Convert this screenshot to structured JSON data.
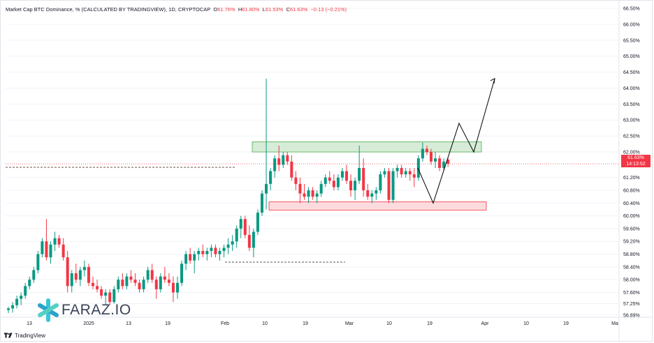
{
  "legend": {
    "title": "Market Cap BTC Dominance, % (CALCULATED BY TRADINGVIEW), 1D, CRYPTOCAP",
    "o_label": "O",
    "o_value": "61.76%",
    "h_label": "H",
    "h_value": "61.80%",
    "l_label": "L",
    "l_value": "61.53%",
    "c_label": "C",
    "c_value": "61.63%",
    "change": "−0.13 (−0.21%)"
  },
  "price_badge": {
    "price": "61.63%",
    "countdown": "14:13:52"
  },
  "watermark": {
    "text": "FARAZ.IO",
    "icon": "asterisk-logo-icon"
  },
  "footer": {
    "brand": "TradingView",
    "icon": "tradingview-logo-icon"
  },
  "colors": {
    "up": "#089981",
    "down": "#f23645",
    "resistance_zone": "#4caf50",
    "support_zone": "#f23645",
    "projection": "#000000",
    "grid": "#f0f3fa"
  },
  "chart_data": {
    "type": "candlestick",
    "y_axis": {
      "position": "right",
      "tick_labels": [
        "66.50%",
        "66.00%",
        "65.50%",
        "65.00%",
        "64.50%",
        "64.00%",
        "63.50%",
        "63.00%",
        "62.50%",
        "62.00%",
        "61.63%",
        "61.20%",
        "60.80%",
        "60.40%",
        "60.00%",
        "59.60%",
        "59.20%",
        "58.80%",
        "58.40%",
        "58.00%",
        "57.60%",
        "57.25%",
        "56.89%"
      ]
    },
    "x_axis": {
      "tick_labels": [
        "13",
        "2025",
        "13",
        "19",
        "Feb",
        "10",
        "19",
        "Mar",
        "10",
        "19",
        "Apr",
        "10",
        "19",
        "Ma"
      ]
    },
    "candles_ohlc": [
      [
        57.05,
        57.15,
        56.95,
        57.1
      ],
      [
        57.1,
        57.3,
        56.97,
        57.2
      ],
      [
        57.2,
        57.5,
        57.1,
        57.4
      ],
      [
        57.4,
        57.6,
        57.2,
        57.5
      ],
      [
        57.5,
        57.9,
        57.4,
        57.8
      ],
      [
        57.8,
        58.1,
        57.7,
        58.0
      ],
      [
        58.0,
        58.4,
        57.9,
        58.3
      ],
      [
        58.3,
        58.9,
        58.2,
        58.8
      ],
      [
        58.8,
        59.3,
        58.7,
        59.2
      ],
      [
        59.2,
        59.9,
        58.6,
        58.7
      ],
      [
        58.7,
        59.2,
        58.5,
        59.1
      ],
      [
        59.1,
        59.5,
        58.9,
        59.3
      ],
      [
        59.3,
        59.4,
        59.0,
        59.1
      ],
      [
        59.1,
        59.3,
        58.6,
        58.7
      ],
      [
        58.7,
        58.9,
        57.6,
        57.8
      ],
      [
        57.8,
        58.3,
        57.6,
        58.2
      ],
      [
        58.2,
        58.5,
        57.9,
        58.0
      ],
      [
        58.0,
        58.4,
        57.8,
        58.3
      ],
      [
        58.3,
        58.6,
        58.1,
        58.4
      ],
      [
        58.4,
        58.5,
        57.8,
        57.9
      ],
      [
        57.9,
        58.1,
        57.7,
        57.8
      ],
      [
        57.8,
        58.0,
        57.6,
        57.7
      ],
      [
        57.7,
        57.8,
        57.4,
        57.5
      ],
      [
        57.5,
        57.7,
        57.2,
        57.6
      ],
      [
        57.6,
        57.7,
        57.2,
        57.3
      ],
      [
        57.3,
        57.8,
        57.25,
        57.7
      ],
      [
        57.7,
        58.1,
        57.6,
        58.0
      ],
      [
        58.0,
        58.2,
        57.7,
        57.8
      ],
      [
        57.8,
        58.2,
        57.7,
        58.1
      ],
      [
        58.1,
        58.3,
        57.9,
        58.0
      ],
      [
        58.0,
        58.2,
        57.8,
        57.9
      ],
      [
        57.9,
        58.0,
        57.6,
        57.7
      ],
      [
        57.7,
        58.1,
        57.6,
        58.0
      ],
      [
        58.0,
        58.4,
        57.9,
        58.3
      ],
      [
        58.3,
        58.5,
        57.9,
        58.0
      ],
      [
        58.0,
        58.1,
        57.4,
        57.7
      ],
      [
        57.7,
        58.2,
        57.6,
        58.1
      ],
      [
        58.1,
        58.4,
        57.9,
        58.0
      ],
      [
        58.0,
        58.2,
        57.8,
        57.9
      ],
      [
        57.9,
        58.1,
        57.3,
        57.6
      ],
      [
        57.6,
        58.1,
        57.4,
        57.9
      ],
      [
        57.9,
        58.6,
        57.8,
        58.5
      ],
      [
        58.5,
        58.9,
        58.3,
        58.8
      ],
      [
        58.8,
        59.0,
        58.5,
        58.6
      ],
      [
        58.6,
        58.9,
        58.2,
        58.8
      ],
      [
        58.8,
        59.0,
        58.6,
        58.9
      ],
      [
        58.9,
        59.1,
        58.7,
        58.8
      ],
      [
        58.8,
        59.0,
        58.6,
        58.9
      ],
      [
        58.9,
        59.1,
        58.7,
        59.0
      ],
      [
        59.0,
        59.1,
        58.7,
        58.8
      ],
      [
        58.8,
        59.0,
        58.6,
        58.9
      ],
      [
        58.9,
        59.1,
        58.7,
        59.0
      ],
      [
        59.0,
        59.3,
        58.8,
        59.1
      ],
      [
        59.1,
        59.4,
        58.9,
        59.2
      ],
      [
        59.2,
        59.7,
        59.0,
        59.6
      ],
      [
        59.6,
        60.0,
        59.3,
        59.9
      ],
      [
        59.9,
        60.0,
        59.3,
        59.4
      ],
      [
        59.4,
        59.7,
        58.9,
        59.0
      ],
      [
        59.0,
        59.6,
        58.7,
        59.5
      ],
      [
        59.5,
        60.2,
        59.4,
        60.1
      ],
      [
        60.1,
        60.8,
        60.0,
        60.7
      ],
      [
        60.7,
        64.3,
        60.2,
        61.0
      ],
      [
        61.0,
        61.5,
        60.8,
        61.4
      ],
      [
        61.4,
        61.9,
        61.2,
        61.8
      ],
      [
        61.8,
        62.2,
        61.4,
        61.6
      ],
      [
        61.6,
        62.0,
        61.5,
        61.9
      ],
      [
        61.9,
        62.0,
        61.6,
        61.7
      ],
      [
        61.7,
        61.9,
        61.1,
        61.2
      ],
      [
        61.2,
        61.4,
        60.8,
        61.0
      ],
      [
        61.0,
        61.2,
        60.4,
        60.7
      ],
      [
        60.7,
        61.0,
        60.5,
        60.6
      ],
      [
        60.6,
        60.9,
        60.4,
        60.8
      ],
      [
        60.8,
        60.9,
        60.5,
        60.6
      ],
      [
        60.6,
        60.8,
        60.4,
        60.7
      ],
      [
        60.7,
        61.1,
        60.6,
        61.0
      ],
      [
        61.0,
        61.3,
        60.9,
        61.2
      ],
      [
        61.2,
        61.4,
        61.0,
        61.1
      ],
      [
        61.1,
        61.3,
        60.8,
        60.9
      ],
      [
        60.9,
        61.3,
        60.8,
        61.2
      ],
      [
        61.2,
        61.5,
        61.1,
        61.4
      ],
      [
        61.4,
        61.6,
        61.0,
        61.1
      ],
      [
        61.1,
        61.3,
        60.6,
        60.8
      ],
      [
        60.8,
        61.2,
        60.5,
        61.1
      ],
      [
        61.1,
        62.2,
        61.0,
        61.5
      ],
      [
        61.5,
        61.8,
        60.6,
        60.8
      ],
      [
        60.8,
        61.0,
        60.5,
        60.6
      ],
      [
        60.6,
        60.8,
        60.4,
        60.7
      ],
      [
        60.7,
        60.9,
        60.5,
        60.8
      ],
      [
        60.8,
        61.4,
        60.7,
        61.3
      ],
      [
        61.3,
        61.5,
        61.2,
        61.4
      ],
      [
        61.4,
        61.5,
        60.4,
        60.5
      ],
      [
        60.5,
        61.5,
        60.4,
        61.4
      ],
      [
        61.4,
        61.6,
        61.2,
        61.5
      ],
      [
        61.5,
        61.6,
        61.2,
        61.3
      ],
      [
        61.3,
        61.5,
        61.2,
        61.4
      ],
      [
        61.4,
        61.5,
        61.1,
        61.3
      ],
      [
        61.3,
        61.5,
        60.9,
        61.2
      ],
      [
        61.2,
        61.9,
        61.1,
        61.8
      ],
      [
        61.8,
        62.3,
        61.7,
        62.1
      ],
      [
        62.1,
        62.2,
        61.9,
        62.0
      ],
      [
        62.0,
        62.1,
        61.6,
        61.7
      ],
      [
        61.7,
        62.0,
        61.5,
        61.8
      ],
      [
        61.8,
        61.9,
        61.4,
        61.5
      ],
      [
        61.5,
        61.8,
        61.4,
        61.7
      ],
      [
        61.76,
        61.8,
        61.53,
        61.63
      ]
    ],
    "annotations": [
      {
        "kind": "rectangle",
        "label": "resistance zone",
        "y_range": [
          62.0,
          62.32
        ]
      },
      {
        "kind": "rectangle",
        "label": "support zone",
        "y_range": [
          60.18,
          60.44
        ]
      },
      {
        "kind": "dashed_line",
        "y": 61.52
      },
      {
        "kind": "dashed_line",
        "y": 58.55
      },
      {
        "kind": "dotted_line",
        "y": 61.63
      },
      {
        "kind": "projection_path",
        "y_values": [
          61.5,
          60.4,
          62.9,
          62.0,
          64.3
        ]
      }
    ]
  }
}
